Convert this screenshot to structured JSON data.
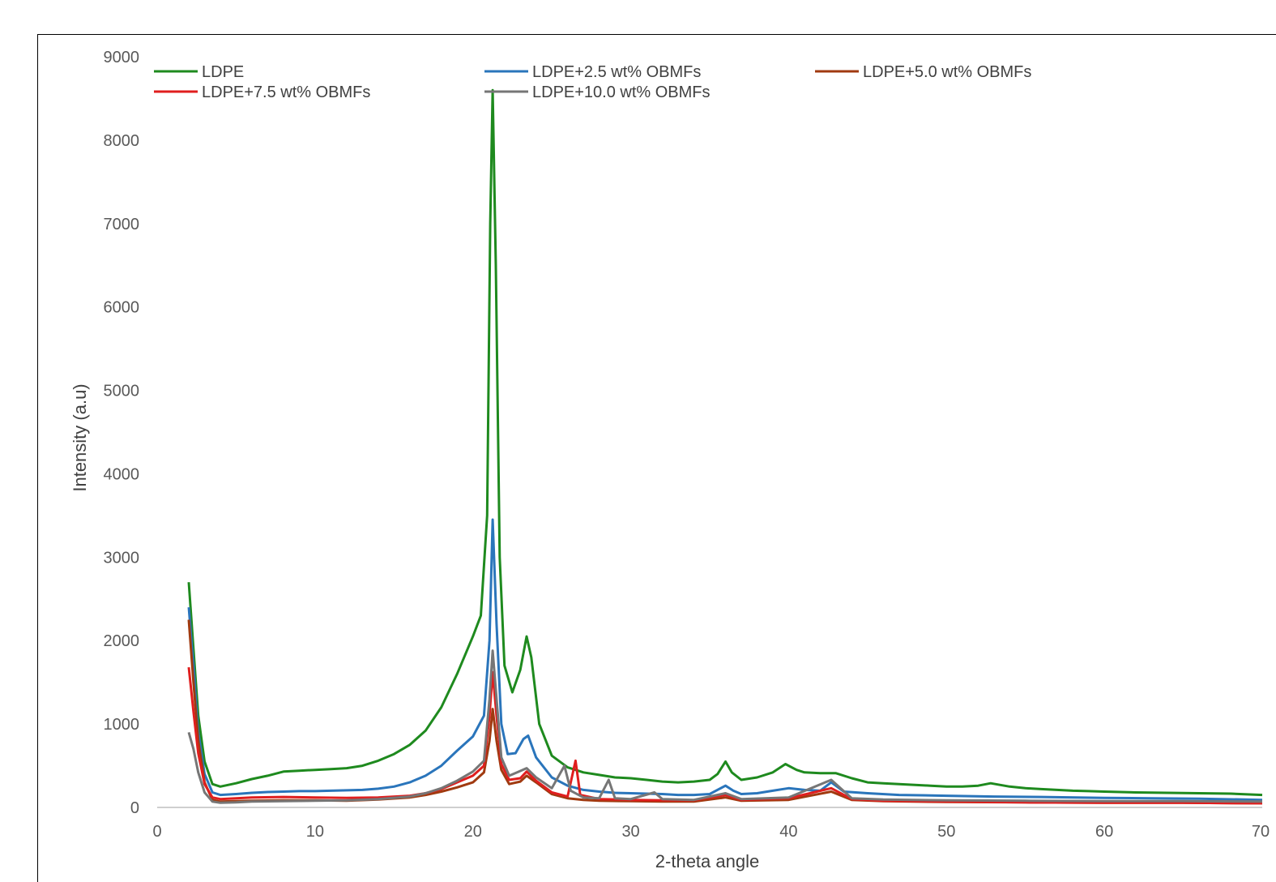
{
  "chart_data": {
    "type": "line",
    "title": "",
    "xlabel": "2-theta angle",
    "ylabel": "Intensity (a.u)",
    "xlim": [
      0,
      70
    ],
    "ylim": [
      0,
      9000
    ],
    "x_ticks": [
      "0",
      "10",
      "20",
      "30",
      "40",
      "50",
      "60",
      "70"
    ],
    "y_ticks": [
      "0",
      "1000",
      "2000",
      "3000",
      "4000",
      "5000",
      "6000",
      "7000",
      "8000",
      "9000"
    ],
    "grid": false,
    "legend_position": "top",
    "series": [
      {
        "name": "LDPE",
        "color": "#1e8a1e",
        "points": [
          [
            2,
            2700
          ],
          [
            2.3,
            1900
          ],
          [
            2.6,
            1100
          ],
          [
            3,
            550
          ],
          [
            3.5,
            280
          ],
          [
            4,
            250
          ],
          [
            5,
            290
          ],
          [
            6,
            340
          ],
          [
            7,
            380
          ],
          [
            8,
            430
          ],
          [
            9,
            440
          ],
          [
            10,
            450
          ],
          [
            11,
            460
          ],
          [
            12,
            470
          ],
          [
            13,
            500
          ],
          [
            14,
            560
          ],
          [
            15,
            640
          ],
          [
            16,
            750
          ],
          [
            17,
            920
          ],
          [
            18,
            1200
          ],
          [
            19,
            1600
          ],
          [
            20,
            2050
          ],
          [
            20.5,
            2300
          ],
          [
            20.9,
            3500
          ],
          [
            21.1,
            7000
          ],
          [
            21.25,
            8600
          ],
          [
            21.45,
            6500
          ],
          [
            21.7,
            3000
          ],
          [
            22,
            1700
          ],
          [
            22.5,
            1380
          ],
          [
            23,
            1650
          ],
          [
            23.4,
            2050
          ],
          [
            23.7,
            1800
          ],
          [
            24.2,
            1000
          ],
          [
            25,
            620
          ],
          [
            26,
            480
          ],
          [
            27,
            420
          ],
          [
            28,
            390
          ],
          [
            29,
            360
          ],
          [
            30,
            350
          ],
          [
            31,
            330
          ],
          [
            32,
            310
          ],
          [
            33,
            300
          ],
          [
            34,
            310
          ],
          [
            35,
            330
          ],
          [
            35.5,
            400
          ],
          [
            36,
            550
          ],
          [
            36.4,
            420
          ],
          [
            37,
            330
          ],
          [
            38,
            360
          ],
          [
            39,
            420
          ],
          [
            39.8,
            520
          ],
          [
            40.5,
            450
          ],
          [
            41,
            420
          ],
          [
            42,
            410
          ],
          [
            43,
            410
          ],
          [
            44,
            350
          ],
          [
            45,
            300
          ],
          [
            46,
            290
          ],
          [
            47,
            280
          ],
          [
            48,
            270
          ],
          [
            49,
            260
          ],
          [
            50,
            250
          ],
          [
            51,
            250
          ],
          [
            52,
            260
          ],
          [
            52.8,
            290
          ],
          [
            54,
            250
          ],
          [
            55,
            230
          ],
          [
            56,
            220
          ],
          [
            57,
            210
          ],
          [
            58,
            200
          ],
          [
            59,
            195
          ],
          [
            60,
            190
          ],
          [
            62,
            180
          ],
          [
            64,
            175
          ],
          [
            66,
            170
          ],
          [
            68,
            165
          ],
          [
            70,
            150
          ]
        ]
      },
      {
        "name": "LDPE+2.5 wt% OBMFs",
        "color": "#2a75bb",
        "points": [
          [
            2,
            2400
          ],
          [
            2.3,
            1700
          ],
          [
            2.6,
            900
          ],
          [
            3,
            400
          ],
          [
            3.5,
            180
          ],
          [
            4,
            150
          ],
          [
            5,
            160
          ],
          [
            6,
            175
          ],
          [
            7,
            185
          ],
          [
            8,
            190
          ],
          [
            9,
            195
          ],
          [
            10,
            195
          ],
          [
            11,
            200
          ],
          [
            12,
            205
          ],
          [
            13,
            210
          ],
          [
            14,
            225
          ],
          [
            15,
            250
          ],
          [
            16,
            300
          ],
          [
            17,
            380
          ],
          [
            18,
            500
          ],
          [
            19,
            680
          ],
          [
            20,
            850
          ],
          [
            20.7,
            1100
          ],
          [
            21.05,
            2000
          ],
          [
            21.25,
            3450
          ],
          [
            21.5,
            2200
          ],
          [
            21.8,
            1000
          ],
          [
            22.2,
            640
          ],
          [
            22.7,
            650
          ],
          [
            23.2,
            820
          ],
          [
            23.5,
            860
          ],
          [
            24,
            600
          ],
          [
            25,
            360
          ],
          [
            26,
            260
          ],
          [
            27,
            210
          ],
          [
            28,
            190
          ],
          [
            29,
            175
          ],
          [
            30,
            170
          ],
          [
            31,
            165
          ],
          [
            32,
            160
          ],
          [
            33,
            150
          ],
          [
            34,
            150
          ],
          [
            35,
            160
          ],
          [
            36,
            260
          ],
          [
            36.5,
            200
          ],
          [
            37,
            160
          ],
          [
            38,
            170
          ],
          [
            39,
            200
          ],
          [
            40,
            230
          ],
          [
            41,
            210
          ],
          [
            42,
            200
          ],
          [
            42.7,
            300
          ],
          [
            43.5,
            190
          ],
          [
            45,
            170
          ],
          [
            47,
            150
          ],
          [
            50,
            140
          ],
          [
            53,
            130
          ],
          [
            56,
            125
          ],
          [
            60,
            115
          ],
          [
            63,
            110
          ],
          [
            66,
            105
          ],
          [
            70,
            90
          ]
        ]
      },
      {
        "name": "LDPE+5.0 wt% OBMFs",
        "color": "#a03a10",
        "points": [
          [
            2,
            2250
          ],
          [
            2.3,
            1500
          ],
          [
            2.6,
            800
          ],
          [
            3,
            300
          ],
          [
            3.5,
            90
          ],
          [
            4,
            70
          ],
          [
            5,
            75
          ],
          [
            6,
            80
          ],
          [
            8,
            85
          ],
          [
            10,
            85
          ],
          [
            12,
            80
          ],
          [
            14,
            95
          ],
          [
            16,
            120
          ],
          [
            17,
            150
          ],
          [
            18,
            190
          ],
          [
            19,
            240
          ],
          [
            20,
            300
          ],
          [
            20.7,
            420
          ],
          [
            21.05,
            800
          ],
          [
            21.25,
            1180
          ],
          [
            21.5,
            800
          ],
          [
            21.8,
            450
          ],
          [
            22.3,
            280
          ],
          [
            23,
            310
          ],
          [
            23.4,
            380
          ],
          [
            24,
            300
          ],
          [
            25,
            160
          ],
          [
            26,
            110
          ],
          [
            27,
            90
          ],
          [
            28,
            80
          ],
          [
            30,
            75
          ],
          [
            32,
            70
          ],
          [
            34,
            70
          ],
          [
            36,
            120
          ],
          [
            37,
            80
          ],
          [
            40,
            90
          ],
          [
            42.7,
            190
          ],
          [
            44,
            90
          ],
          [
            46,
            75
          ],
          [
            50,
            65
          ],
          [
            55,
            60
          ],
          [
            60,
            55
          ],
          [
            65,
            55
          ],
          [
            70,
            50
          ]
        ]
      },
      {
        "name": "LDPE+7.5 wt% OBMFs",
        "color": "#e01e1e",
        "points": [
          [
            2,
            1680
          ],
          [
            2.3,
            1150
          ],
          [
            2.6,
            650
          ],
          [
            3,
            280
          ],
          [
            3.5,
            120
          ],
          [
            4,
            100
          ],
          [
            5,
            110
          ],
          [
            6,
            120
          ],
          [
            8,
            125
          ],
          [
            10,
            120
          ],
          [
            12,
            115
          ],
          [
            14,
            120
          ],
          [
            16,
            140
          ],
          [
            17,
            170
          ],
          [
            18,
            220
          ],
          [
            19,
            300
          ],
          [
            20,
            380
          ],
          [
            20.7,
            500
          ],
          [
            21.05,
            1100
          ],
          [
            21.25,
            1620
          ],
          [
            21.5,
            1100
          ],
          [
            21.8,
            520
          ],
          [
            22.3,
            330
          ],
          [
            23,
            350
          ],
          [
            23.4,
            430
          ],
          [
            24,
            320
          ],
          [
            25,
            180
          ],
          [
            26,
            130
          ],
          [
            26.5,
            560
          ],
          [
            26.8,
            150
          ],
          [
            28,
            100
          ],
          [
            30,
            90
          ],
          [
            32,
            85
          ],
          [
            34,
            85
          ],
          [
            36,
            150
          ],
          [
            37,
            90
          ],
          [
            40,
            110
          ],
          [
            42.7,
            230
          ],
          [
            44,
            100
          ],
          [
            46,
            80
          ],
          [
            50,
            70
          ],
          [
            55,
            60
          ],
          [
            60,
            55
          ],
          [
            65,
            55
          ],
          [
            70,
            50
          ]
        ]
      },
      {
        "name": "LDPE+10.0 wt% OBMFs",
        "color": "#767676",
        "points": [
          [
            2,
            900
          ],
          [
            2.3,
            700
          ],
          [
            2.6,
            420
          ],
          [
            3,
            180
          ],
          [
            3.5,
            70
          ],
          [
            4,
            55
          ],
          [
            5,
            60
          ],
          [
            6,
            70
          ],
          [
            8,
            75
          ],
          [
            10,
            80
          ],
          [
            12,
            85
          ],
          [
            14,
            100
          ],
          [
            16,
            130
          ],
          [
            17,
            170
          ],
          [
            18,
            230
          ],
          [
            19,
            320
          ],
          [
            20,
            430
          ],
          [
            20.7,
            560
          ],
          [
            21.05,
            1300
          ],
          [
            21.25,
            1880
          ],
          [
            21.5,
            1300
          ],
          [
            21.8,
            600
          ],
          [
            22.3,
            380
          ],
          [
            22.8,
            420
          ],
          [
            23.4,
            470
          ],
          [
            24,
            360
          ],
          [
            25,
            230
          ],
          [
            25.8,
            500
          ],
          [
            26.2,
            200
          ],
          [
            27,
            120
          ],
          [
            28,
            110
          ],
          [
            28.6,
            330
          ],
          [
            29,
            110
          ],
          [
            30,
            100
          ],
          [
            31.5,
            180
          ],
          [
            32,
            100
          ],
          [
            34,
            90
          ],
          [
            36,
            170
          ],
          [
            37,
            100
          ],
          [
            40,
            120
          ],
          [
            42.7,
            330
          ],
          [
            44,
            110
          ],
          [
            46,
            95
          ],
          [
            50,
            85
          ],
          [
            55,
            80
          ],
          [
            60,
            75
          ],
          [
            65,
            75
          ],
          [
            70,
            70
          ]
        ]
      }
    ]
  }
}
